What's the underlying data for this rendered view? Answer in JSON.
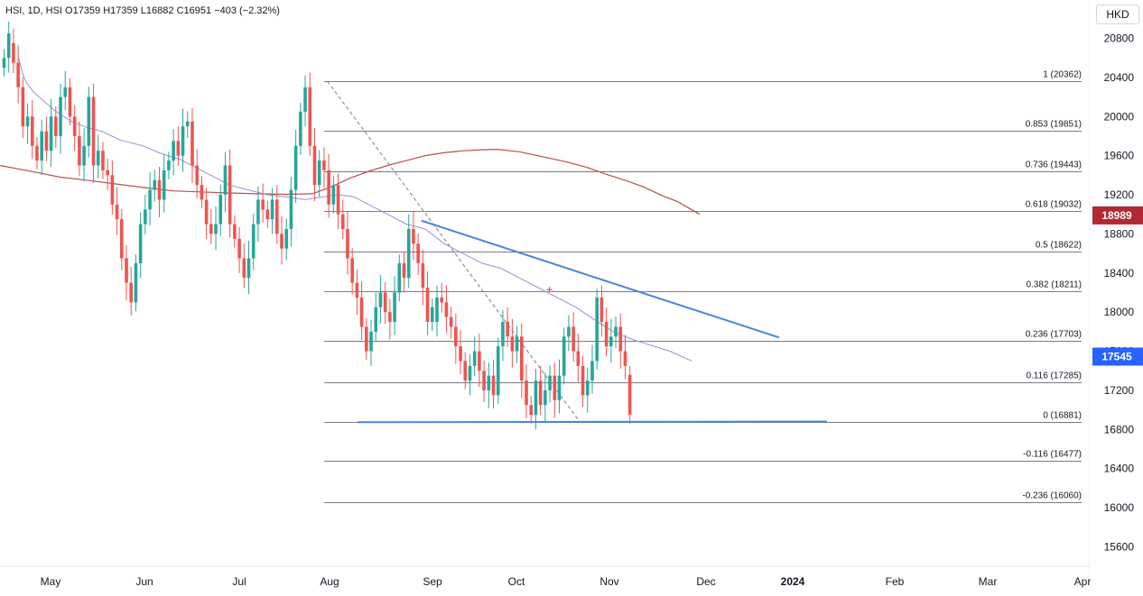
{
  "header": {
    "ticker_line": "HSI, 1D, HSI  O17359  H17359  L16882  C16951  −403 (−2.32%)",
    "currency": "HKD"
  },
  "colors": {
    "up": "#26a69a",
    "down": "#ef5350",
    "ma_fast": "#9c8fd6",
    "ma_slow": "#b5504f",
    "trendline": "#4a86d8",
    "fib_line": "#787b86",
    "badge_red": "#b22833",
    "badge_blue": "#2962ff"
  },
  "chart_data": {
    "type": "candlestick",
    "title": "HSI, 1D, HSI",
    "ohlc_label": {
      "open": 17359,
      "high": 17359,
      "low": 16882,
      "close": 16951,
      "change": "−403 (−2.32%)"
    },
    "y_axis": {
      "min": 15400,
      "max": 21000,
      "ticks": [
        "20800",
        "20400",
        "20000",
        "19600",
        "19200",
        "18800",
        "18400",
        "18000",
        "17600",
        "17200",
        "16800",
        "16400",
        "16000",
        "15600"
      ]
    },
    "x_axis": {
      "ticks": [
        "May",
        "Jun",
        "Jul",
        "Aug",
        "Sep",
        "Oct",
        "Nov",
        "Dec",
        "2024",
        "Feb",
        "Mar",
        "Apr"
      ]
    },
    "price_badges": [
      {
        "label": "18989",
        "value": 18989,
        "color": "#b22833"
      },
      {
        "label": "17545",
        "value": 17545,
        "color": "#2962ff"
      }
    ],
    "fib_levels": [
      {
        "label": "1 (20362)",
        "value": 20362
      },
      {
        "label": "0.853 (19851)",
        "value": 19851
      },
      {
        "label": "0.736 (19443)",
        "value": 19443
      },
      {
        "label": "0.618 (19032)",
        "value": 19032
      },
      {
        "label": "0.5 (18622)",
        "value": 18622
      },
      {
        "label": "0.382 (18211)",
        "value": 18211
      },
      {
        "label": "0.236 (17703)",
        "value": 17703
      },
      {
        "label": "0.116 (17285)",
        "value": 17285
      },
      {
        "label": "0 (16881)",
        "value": 16881
      },
      {
        "label": "-0.116 (16477)",
        "value": 16477
      },
      {
        "label": "-0.236 (16060)",
        "value": 16060
      }
    ],
    "candles": [
      [
        20500,
        20600
      ],
      [
        20600,
        20850
      ],
      [
        20750,
        20550
      ],
      [
        20550,
        20300
      ],
      [
        20300,
        19900
      ],
      [
        19900,
        20000
      ],
      [
        20000,
        19700
      ],
      [
        19700,
        19550
      ],
      [
        19550,
        19850
      ],
      [
        19850,
        19650
      ],
      [
        19650,
        20000
      ],
      [
        20000,
        19800
      ],
      [
        19800,
        20200
      ],
      [
        20200,
        20300
      ],
      [
        20300,
        20000
      ],
      [
        20000,
        19800
      ],
      [
        19800,
        19500
      ],
      [
        19500,
        19700
      ],
      [
        19700,
        20200
      ],
      [
        20200,
        19500
      ],
      [
        19500,
        19650
      ],
      [
        19650,
        19450
      ],
      [
        19450,
        19400
      ],
      [
        19400,
        19100
      ],
      [
        19100,
        18950
      ],
      [
        18950,
        18550
      ],
      [
        18550,
        18300
      ],
      [
        18300,
        18100
      ],
      [
        18100,
        18500
      ],
      [
        18500,
        18900
      ],
      [
        18900,
        19050
      ],
      [
        19050,
        19250
      ],
      [
        19250,
        19350
      ],
      [
        19350,
        19150
      ],
      [
        19150,
        19450
      ],
      [
        19450,
        19550
      ],
      [
        19550,
        19750
      ],
      [
        19750,
        19600
      ],
      [
        19600,
        19900
      ],
      [
        19900,
        19950
      ],
      [
        19950,
        19500
      ],
      [
        19500,
        19300
      ],
      [
        19300,
        19150
      ],
      [
        19150,
        18900
      ],
      [
        18900,
        18800
      ],
      [
        18800,
        18900
      ],
      [
        18900,
        19200
      ],
      [
        19200,
        19500
      ],
      [
        19500,
        18900
      ],
      [
        18900,
        18750
      ],
      [
        18750,
        18550
      ],
      [
        18550,
        18350
      ],
      [
        18350,
        18550
      ],
      [
        18550,
        18900
      ],
      [
        18900,
        19150
      ],
      [
        19150,
        19050
      ],
      [
        19050,
        18950
      ],
      [
        18950,
        19150
      ],
      [
        19150,
        18800
      ],
      [
        18800,
        18650
      ],
      [
        18650,
        18850
      ],
      [
        18850,
        19250
      ],
      [
        19250,
        19700
      ],
      [
        19700,
        20050
      ],
      [
        20050,
        20300
      ],
      [
        20300,
        19700
      ],
      [
        19700,
        19300
      ],
      [
        19300,
        19550
      ],
      [
        19550,
        19450
      ],
      [
        19450,
        19100
      ],
      [
        19100,
        19300
      ],
      [
        19300,
        19000
      ],
      [
        19000,
        18850
      ],
      [
        18850,
        18550
      ],
      [
        18550,
        18300
      ],
      [
        18300,
        18150
      ],
      [
        18150,
        17850
      ],
      [
        17850,
        17600
      ],
      [
        17600,
        17800
      ],
      [
        17800,
        18050
      ],
      [
        18050,
        18200
      ],
      [
        18200,
        18000
      ],
      [
        18000,
        17900
      ],
      [
        17900,
        18200
      ],
      [
        18200,
        18500
      ],
      [
        18500,
        18350
      ],
      [
        18350,
        18850
      ],
      [
        18850,
        18700
      ],
      [
        18700,
        18500
      ],
      [
        18500,
        18250
      ],
      [
        18250,
        17900
      ],
      [
        17900,
        18050
      ],
      [
        17900,
        18150
      ],
      [
        18150,
        18100
      ],
      [
        18100,
        17950
      ],
      [
        17950,
        17850
      ],
      [
        17850,
        17650
      ],
      [
        17650,
        17500
      ],
      [
        17500,
        17300
      ],
      [
        17300,
        17450
      ],
      [
        17450,
        17600
      ],
      [
        17600,
        17400
      ],
      [
        17400,
        17200
      ],
      [
        17200,
        17350
      ],
      [
        17350,
        17150
      ],
      [
        17150,
        17650
      ],
      [
        17650,
        17900
      ],
      [
        17900,
        17750
      ],
      [
        17750,
        17600
      ],
      [
        17600,
        17750
      ],
      [
        17750,
        17300
      ],
      [
        17300,
        17050
      ],
      [
        17050,
        16950
      ],
      [
        16950,
        17300
      ],
      [
        17300,
        17050
      ],
      [
        17050,
        17200
      ],
      [
        17200,
        17350
      ],
      [
        17350,
        17100
      ],
      [
        17100,
        17350
      ],
      [
        17350,
        17750
      ],
      [
        17750,
        17850
      ],
      [
        17850,
        17600
      ],
      [
        17600,
        17450
      ],
      [
        17450,
        17150
      ],
      [
        17150,
        17300
      ],
      [
        17300,
        17500
      ],
      [
        17500,
        18150
      ],
      [
        18150,
        17900
      ],
      [
        17900,
        17650
      ],
      [
        17650,
        17750
      ],
      [
        17750,
        17850
      ],
      [
        17850,
        17600
      ],
      [
        17600,
        17450
      ],
      [
        17359,
        16951
      ]
    ],
    "ma_fast": [
      [
        20.66,
        20600
      ],
      [
        24.82,
        20450
      ],
      [
        29,
        20350
      ],
      [
        37.34,
        20250
      ],
      [
        45.68,
        20180
      ],
      [
        62.36,
        20050
      ],
      [
        79.04,
        19950
      ],
      [
        95.72,
        19890
      ],
      [
        112.4,
        19850
      ],
      [
        133.25,
        19760
      ],
      [
        158.27,
        19700
      ],
      [
        179.12,
        19620
      ],
      [
        200,
        19560
      ],
      [
        216.65,
        19480
      ],
      [
        233.33,
        19400
      ],
      [
        254.18,
        19300
      ],
      [
        275.03,
        19250
      ],
      [
        295.88,
        19200
      ],
      [
        316.73,
        19180
      ],
      [
        337.58,
        19150
      ],
      [
        358.43,
        19180
      ],
      [
        375.11,
        19200
      ],
      [
        391.79,
        19180
      ],
      [
        408.47,
        19100
      ],
      [
        429.32,
        19000
      ],
      [
        450.17,
        18900
      ],
      [
        471.02,
        18850
      ],
      [
        491.87,
        18700
      ],
      [
        512.72,
        18600
      ],
      [
        533.57,
        18500
      ],
      [
        554.42,
        18450
      ],
      [
        575.27,
        18350
      ],
      [
        596.12,
        18250
      ],
      [
        616.97,
        18150
      ],
      [
        637.82,
        18050
      ],
      [
        658.67,
        17920
      ],
      [
        679.52,
        17800
      ],
      [
        700.37,
        17720
      ],
      [
        721.22,
        17660
      ],
      [
        742.07,
        17600
      ],
      [
        766.39,
        17500
      ]
    ],
    "ma_slow": [
      [
        0,
        19500
      ],
      [
        16.66,
        19470
      ],
      [
        45.68,
        19420
      ],
      [
        66.53,
        19380
      ],
      [
        95.72,
        19350
      ],
      [
        129.08,
        19310
      ],
      [
        162.44,
        19270
      ],
      [
        191.63,
        19240
      ],
      [
        220.82,
        19230
      ],
      [
        250.01,
        19220
      ],
      [
        283.37,
        19210
      ],
      [
        316.73,
        19205
      ],
      [
        345.92,
        19210
      ],
      [
        366.77,
        19280
      ],
      [
        387.62,
        19370
      ],
      [
        408.47,
        19440
      ],
      [
        429.32,
        19500
      ],
      [
        450.17,
        19550
      ],
      [
        471.02,
        19600
      ],
      [
        491.87,
        19630
      ],
      [
        512.72,
        19650
      ],
      [
        533.57,
        19660
      ],
      [
        550.25,
        19665
      ],
      [
        575.27,
        19640
      ],
      [
        600.29,
        19590
      ],
      [
        625.31,
        19540
      ],
      [
        650.33,
        19480
      ],
      [
        671.18,
        19410
      ],
      [
        692.03,
        19350
      ],
      [
        712.88,
        19280
      ],
      [
        733.73,
        19190
      ],
      [
        750.41,
        19130
      ],
      [
        775,
        19000
      ]
    ],
    "trendlines": [
      {
        "from": [
          466.85,
          18935
        ],
        "to": [
          863,
          17740
        ]
      },
      {
        "from": [
          395.96,
          16874
        ],
        "to": [
          916,
          16881
        ]
      }
    ],
    "fib_anchor_line": {
      "from": [
        362.6,
        20362
      ],
      "to": [
        641.96,
        16881
      ]
    },
    "dashed_diagonal": {
      "from": [
        362.6,
        20362
      ],
      "to": [
        641.96,
        16881
      ]
    },
    "cross_marker": [
      608.6,
      18230
    ]
  }
}
